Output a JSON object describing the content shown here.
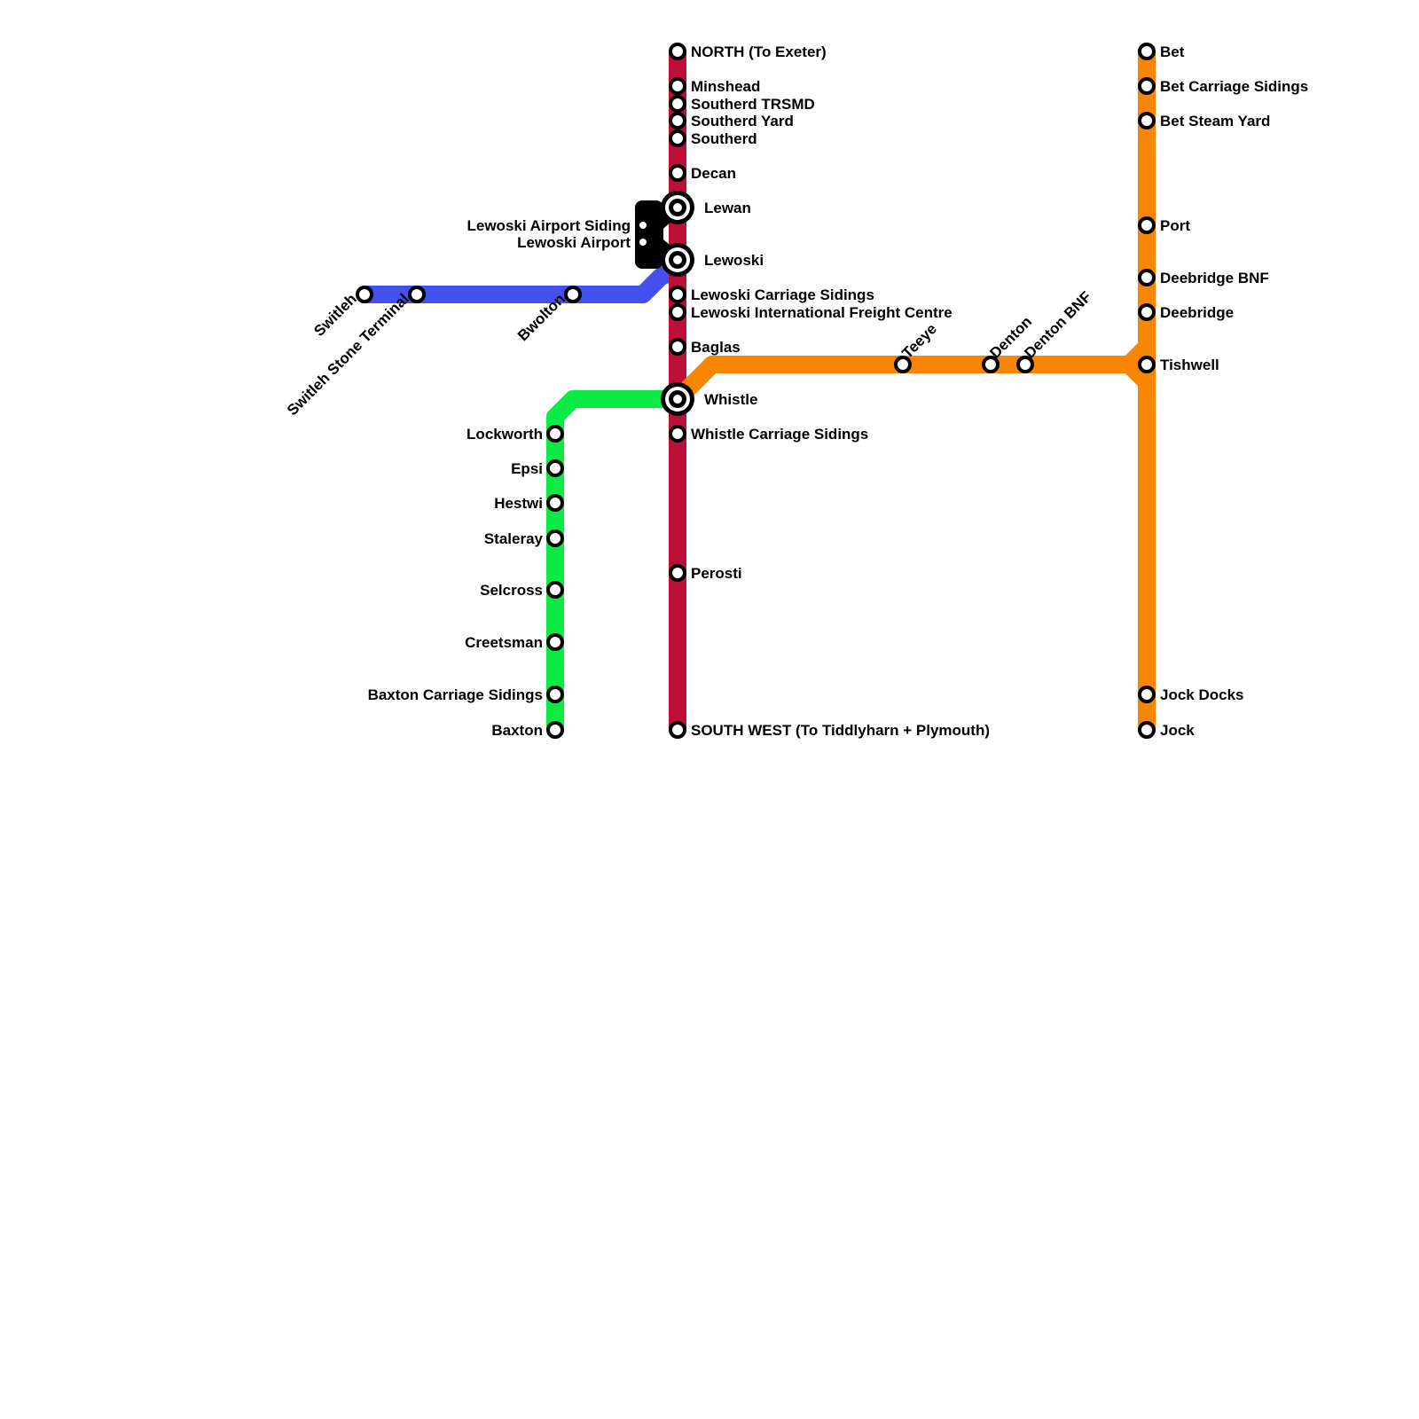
{
  "colors": {
    "red": "#bd1038",
    "green": "#0bea45",
    "blue": "#4450ec",
    "orange": "#f98600",
    "black": "#000000"
  },
  "red_line": {
    "stations": [
      "NORTH (To Exeter)",
      "Minshead",
      "Southerd TRSMD",
      "Southerd Yard",
      "Southerd",
      "Decan",
      "Lewan",
      "Lewoski",
      "Lewoski Carriage Sidings",
      "Lewoski International Freight Centre",
      "Baglas",
      "Whistle",
      "Whistle Carriage Sidings",
      "Perosti",
      "SOUTH WEST (To Tiddlyharn + Plymouth)"
    ]
  },
  "green_line": {
    "stations": [
      "Lockworth",
      "Epsi",
      "Hestwi",
      "Staleray",
      "Selcross",
      "Creetsman",
      "Baxton Carriage Sidings",
      "Baxton"
    ]
  },
  "blue_line": {
    "stations": [
      "Switleh",
      "Switleh Stone Terminal",
      "Bwolton"
    ]
  },
  "black_line": {
    "stations": [
      "Lewoski Airport Siding",
      "Lewoski Airport"
    ]
  },
  "orange_line": {
    "branch_stations": [
      "Teeye",
      "Denton",
      "Denton BNF"
    ],
    "stations": [
      "Bet",
      "Bet Carriage Sidings",
      "Bet Steam Yard",
      "Port",
      "Deebridge BNF",
      "Deebridge",
      "Tishwell",
      "Jock Docks",
      "Jock"
    ]
  }
}
